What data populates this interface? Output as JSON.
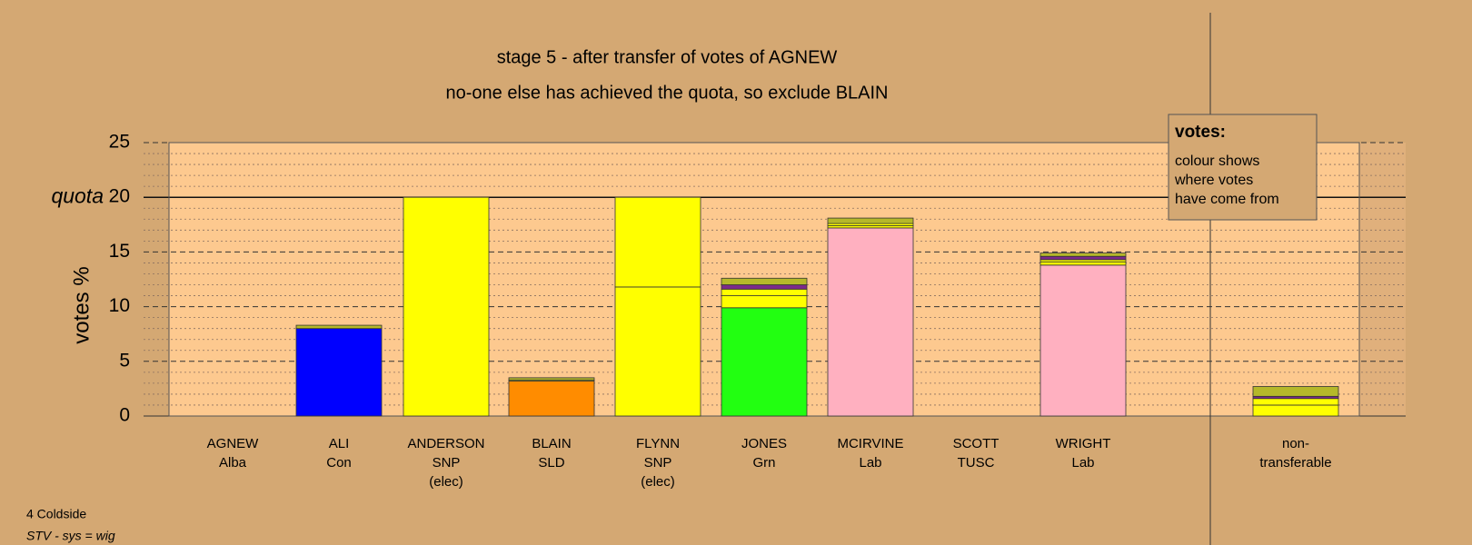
{
  "chart_data": {
    "type": "stacked_bar",
    "title": "stage 5 - after transfer of votes of AGNEW",
    "subtitle": "no-one else has achieved the quota, so exclude BLAIN",
    "ylabel": "votes %",
    "ylim": [
      0,
      25
    ],
    "yticks": [
      0,
      5,
      10,
      15,
      20,
      25
    ],
    "minor_yticks": [
      1,
      2,
      3,
      4,
      6,
      7,
      8,
      9,
      11,
      12,
      13,
      14,
      16,
      17,
      18,
      19,
      21,
      22,
      23,
      24
    ],
    "grid": true,
    "quota": {
      "value": 20,
      "label": "quota"
    },
    "categories": [
      [
        "AGNEW",
        "Alba"
      ],
      [
        "ALI",
        "Con"
      ],
      [
        "ANDERSON",
        "SNP",
        "(elec)"
      ],
      [
        "BLAIN",
        "SLD"
      ],
      [
        "FLYNN",
        "SNP",
        "(elec)"
      ],
      [
        "JONES",
        "Grn"
      ],
      [
        "MCIRVINE",
        "Lab"
      ],
      [
        "SCOTT",
        "TUSC"
      ],
      [
        "WRIGHT",
        "Lab"
      ],
      [
        "non-",
        "transferable"
      ]
    ],
    "stacks": [
      {
        "values": [],
        "colors": []
      },
      {
        "values": [
          8.0,
          0.3
        ],
        "colors": [
          "#0000ff",
          "#b5b82a"
        ]
      },
      {
        "values": [
          20
        ],
        "colors": [
          "#ffff00"
        ]
      },
      {
        "values": [
          3.2,
          0.1,
          0.2
        ],
        "colors": [
          "#ff8c00",
          "#ffff00",
          "#b5b82a"
        ]
      },
      {
        "values": [
          11.8,
          8.2
        ],
        "colors": [
          "#ffff00",
          "#ffff00"
        ]
      },
      {
        "values": [
          9.9,
          1.1,
          0.6,
          0.4,
          0.6
        ],
        "colors": [
          "#22ff11",
          "#ffff00",
          "#ffff00",
          "#7b2a8a",
          "#b5b82a"
        ]
      },
      {
        "values": [
          17.2,
          0.2,
          0.2,
          0.5
        ],
        "colors": [
          "#ffb0c0",
          "#ffff00",
          "#ffff00",
          "#b5b82a"
        ]
      },
      {
        "values": [],
        "colors": []
      },
      {
        "values": [
          13.8,
          0.3,
          0.2,
          0.3,
          0.3
        ],
        "colors": [
          "#ffb0c0",
          "#ffff00",
          "#ffff00",
          "#7b2a8a",
          "#b5b82a"
        ]
      },
      {
        "values": [
          1.0,
          0.6,
          0.2,
          0.9
        ],
        "colors": [
          "#ffff00",
          "#ffff00",
          "#7b2a8a",
          "#b5b82a"
        ]
      }
    ],
    "note": {
      "title": "votes:",
      "lines": [
        "colour shows",
        "where votes",
        "have come from"
      ]
    },
    "footer": [
      "4 Coldside",
      "STV - sys = wig"
    ]
  }
}
